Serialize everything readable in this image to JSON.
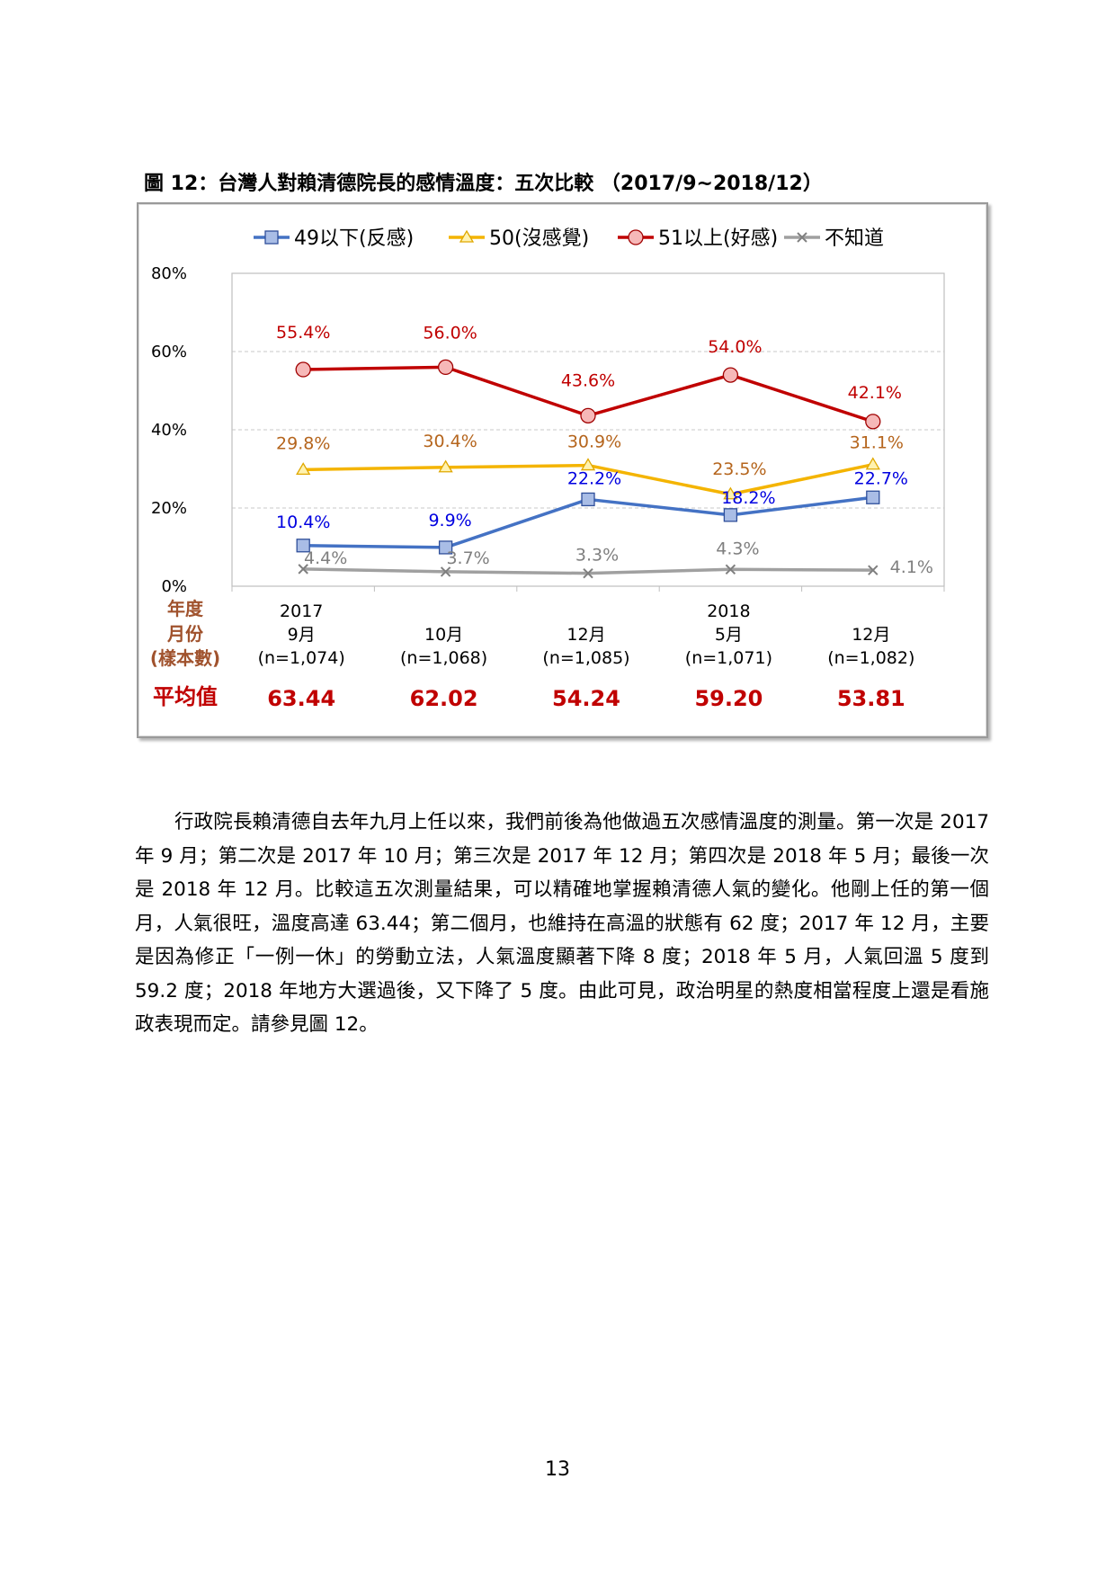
{
  "figure_title": "圖 12：台灣人對賴清德院長的感情溫度：五次比較 （2017/9~2018/12）",
  "body_text": "行政院長賴清德自去年九月上任以來，我們前後為他做過五次感情溫度的測量。第一次是 2017 年 9 月；第二次是 2017 年 10 月；第三次是 2017 年 12 月；第四次是 2018 年 5 月；最後一次是 2018 年 12 月。比較這五次測量結果，可以精確地掌握賴清德人氣的變化。他剛上任的第一個月，人氣很旺，溫度高達 63.44；第二個月，也維持在高溫的狀態有 62 度；2017 年 12 月，主要是因為修正「一例一休」的勞動立法，人氣溫度顯著下降 8 度；2018 年 5 月，人氣回溫 5 度到 59.2 度；2018 年地方大選過後，又下降了 5 度。由此可見，政治明星的熱度相當程度上還是看施政表現而定。請參見圖 12。",
  "page_number": "13",
  "chart_data": {
    "type": "line",
    "y_ticks": [
      "0%",
      "20%",
      "40%",
      "60%",
      "80%"
    ],
    "ylim": [
      0,
      80
    ],
    "grid": true,
    "legend_position": "top",
    "row_labels": {
      "year": "年度",
      "month": "月份",
      "sample": "(樣本數)",
      "average": "平均值"
    },
    "years": [
      "2017",
      "",
      "",
      "2018",
      ""
    ],
    "months": [
      "9月",
      "10月",
      "12月",
      "5月",
      "12月"
    ],
    "samples": [
      "(n=1,074)",
      "(n=1,068)",
      "(n=1,085)",
      "(n=1,071)",
      "(n=1,082)"
    ],
    "averages": [
      "63.44",
      "62.02",
      "54.24",
      "59.20",
      "53.81"
    ],
    "series": [
      {
        "name": "49以下(反感)",
        "color": "#4472c4",
        "label_color": "#0000e0",
        "marker": "square",
        "values": [
          10.4,
          9.9,
          22.2,
          18.2,
          22.7
        ],
        "labels": [
          "10.4%",
          "9.9%",
          "22.2%",
          "18.2%",
          "22.7%"
        ]
      },
      {
        "name": "50(沒感覺)",
        "color": "#f4b400",
        "label_color": "#b5651d",
        "marker": "triangle",
        "values": [
          29.8,
          30.4,
          30.9,
          23.5,
          31.1
        ],
        "labels": [
          "29.8%",
          "30.4%",
          "30.9%",
          "23.5%",
          "31.1%"
        ]
      },
      {
        "name": "51以上(好感)",
        "color": "#c00000",
        "label_color": "#c00000",
        "marker": "circle",
        "values": [
          55.4,
          56.0,
          43.6,
          54.0,
          42.1
        ],
        "labels": [
          "55.4%",
          "56.0%",
          "43.6%",
          "54.0%",
          "42.1%"
        ]
      },
      {
        "name": "不知道",
        "color": "#a0a0a0",
        "label_color": "#7f7f7f",
        "marker": "x",
        "values": [
          4.4,
          3.7,
          3.3,
          4.3,
          4.1
        ],
        "labels": [
          "4.4%",
          "3.7%",
          "3.3%",
          "4.3%",
          "4.1%"
        ]
      }
    ]
  }
}
